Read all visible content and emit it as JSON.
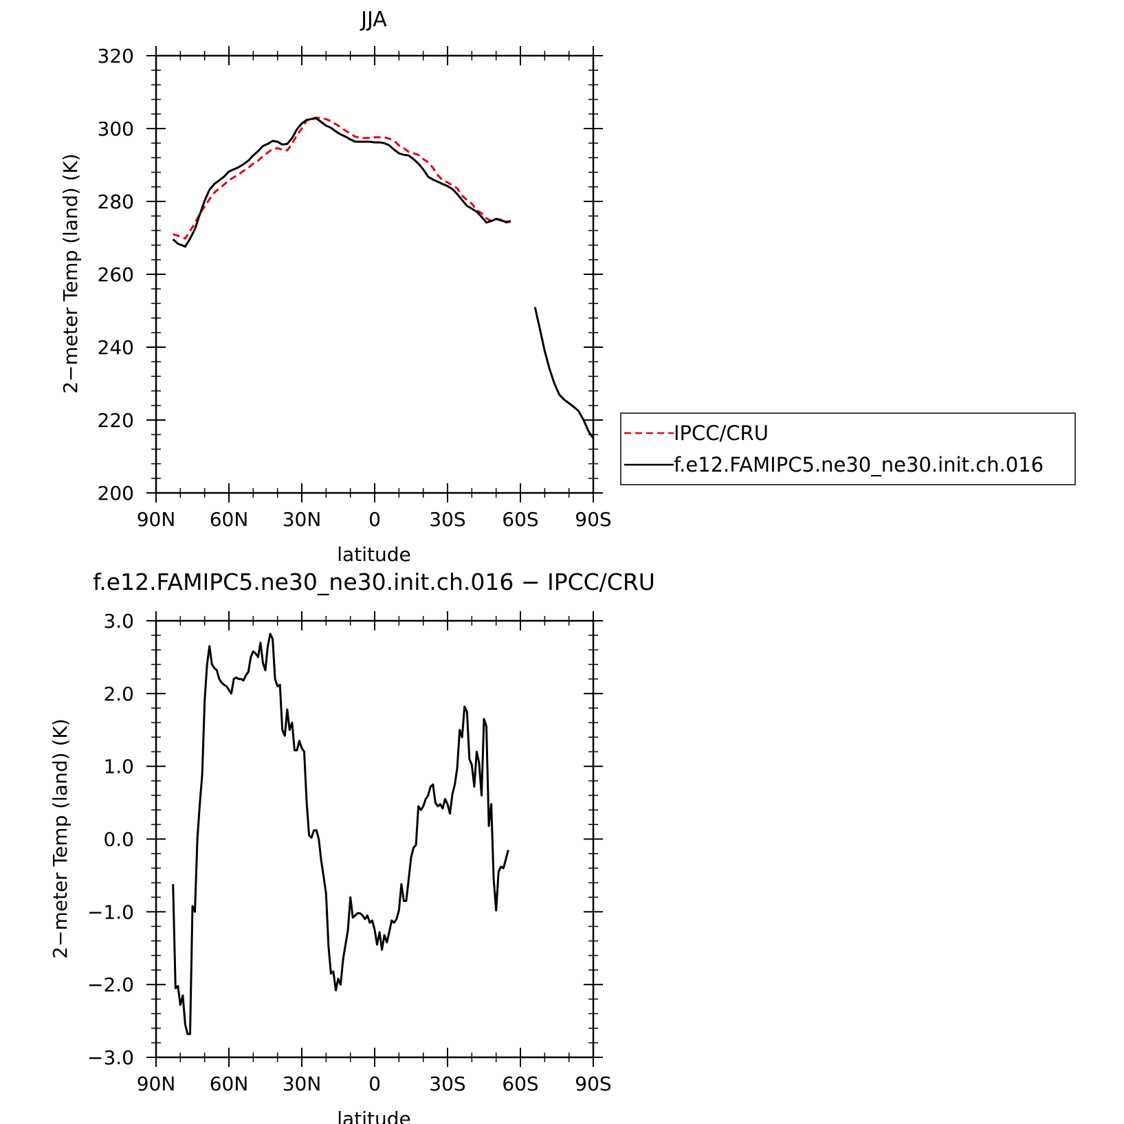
{
  "chart_data": [
    {
      "type": "line",
      "title": "JJA",
      "xlabel": "latitude",
      "ylabel": "2−meter Temp (land) (K)",
      "xlim": [
        90,
        -90
      ],
      "ylim": [
        200,
        320
      ],
      "xticks": [
        90,
        60,
        30,
        0,
        -30,
        -60,
        -90
      ],
      "xtick_labels": [
        "90N",
        "60N",
        "30N",
        "0",
        "30S",
        "60S",
        "90S"
      ],
      "yticks": [
        200,
        220,
        240,
        260,
        280,
        300,
        320
      ],
      "ytick_labels": [
        "200",
        "220",
        "240",
        "260",
        "280",
        "300",
        "320"
      ],
      "legend": {
        "placement": "right"
      },
      "series": [
        {
          "name": "IPCC/CRU",
          "color": "#e8000b",
          "dash": "dashed",
          "x": [
            83,
            81,
            78,
            76,
            74,
            72,
            70,
            68,
            66,
            64,
            62,
            60,
            58,
            56,
            54,
            52,
            50,
            48,
            46,
            44,
            42,
            40,
            38,
            36,
            34,
            32,
            30,
            28,
            26,
            24,
            22,
            20,
            18,
            16,
            14,
            12,
            10,
            8,
            6,
            4,
            2,
            0,
            -2,
            -4,
            -6,
            -8,
            -10,
            -12,
            -14,
            -16,
            -18,
            -20,
            -22,
            -24,
            -26,
            -28,
            -30,
            -32,
            -34,
            -36,
            -38,
            -40,
            -42,
            -44,
            -46,
            -48,
            -50,
            -52,
            -54,
            -56
          ],
          "values": [
            271,
            270.6,
            269.8,
            271.9,
            274,
            276.6,
            278.6,
            280.6,
            282.4,
            283.6,
            284.6,
            285.8,
            286.6,
            287.4,
            288.4,
            289.2,
            290.4,
            291.2,
            292.4,
            293.4,
            294.4,
            294.6,
            294.2,
            294,
            295.8,
            298.2,
            300,
            302.2,
            302.8,
            303,
            302.8,
            302.6,
            302,
            301.2,
            300.4,
            299.4,
            298.6,
            297.8,
            297.4,
            297.4,
            297.4,
            297.6,
            297.6,
            297.6,
            297.2,
            296.6,
            295.4,
            294.6,
            293.6,
            293.2,
            292.8,
            291.6,
            290.8,
            289.2,
            287.2,
            285.8,
            285.2,
            284.4,
            283.6,
            281.6,
            280.4,
            279.4,
            277.6,
            276.8,
            275.4,
            274.6,
            275.2,
            275,
            274.2,
            274.4
          ]
        },
        {
          "name": "f.e12.FAMIPC5.ne30_ne30.init.ch.016",
          "color": "#000000",
          "dash": "solid",
          "x": [
            83,
            81,
            78,
            76,
            74,
            72,
            70,
            68,
            66,
            64,
            62,
            60,
            58,
            56,
            54,
            52,
            50,
            48,
            46,
            44,
            42,
            40,
            38,
            36,
            34,
            32,
            30,
            28,
            26,
            24,
            22,
            20,
            18,
            16,
            14,
            12,
            10,
            8,
            6,
            4,
            2,
            0,
            -2,
            -4,
            -6,
            -8,
            -10,
            -12,
            -14,
            -16,
            -18,
            -20,
            -22,
            -24,
            -26,
            -28,
            -30,
            -32,
            -34,
            -36,
            -38,
            -40,
            -42,
            -44,
            -46,
            -48,
            -50,
            -52,
            -54,
            -56,
            null,
            -66,
            -68,
            -70,
            -72,
            -74,
            -76,
            -78,
            -80,
            -82,
            -84,
            -86,
            -88,
            -90
          ],
          "values": [
            269.6,
            268.4,
            267.6,
            269.8,
            272.4,
            276.4,
            280.2,
            283.2,
            284.8,
            285.8,
            286.8,
            288.2,
            288.8,
            289.4,
            290.2,
            291.2,
            292.6,
            293.8,
            295.2,
            295.8,
            296.6,
            296.4,
            295.6,
            295.8,
            297.4,
            299.8,
            301.4,
            302.4,
            302.6,
            302.8,
            301.8,
            300.8,
            300.2,
            299.2,
            298.4,
            297.8,
            297,
            296.4,
            296.4,
            296.4,
            296.4,
            296.2,
            296.2,
            296,
            295.4,
            294.2,
            293.2,
            292.8,
            292.6,
            291.6,
            290.4,
            288.8,
            286.8,
            286,
            285.4,
            284.8,
            284.2,
            283.4,
            282,
            280.4,
            278.8,
            278,
            277.2,
            275.8,
            274.2,
            274.6,
            275.2,
            274.8,
            274.4,
            274.6,
            null,
            251,
            245,
            239,
            234,
            230,
            227,
            225.6,
            224.6,
            223.6,
            222.4,
            220,
            217,
            215
          ]
        }
      ]
    },
    {
      "type": "line",
      "title": "f.e12.FAMIPC5.ne30_ne30.init.ch.016 − IPCC/CRU",
      "xlabel": "latitude",
      "ylabel": "2−meter Temp (land) (K)",
      "xlim": [
        90,
        -90
      ],
      "ylim": [
        -3,
        3
      ],
      "xticks": [
        90,
        60,
        30,
        0,
        -30,
        -60,
        -90
      ],
      "xtick_labels": [
        "90N",
        "60N",
        "30N",
        "0",
        "30S",
        "60S",
        "90S"
      ],
      "yticks": [
        -3,
        -2,
        -1,
        0,
        1,
        2,
        3
      ],
      "ytick_labels": [
        "−3.0",
        "−2.0",
        "−1.0",
        "0.0",
        "1.0",
        "2.0",
        "3.0"
      ],
      "series": [
        {
          "color": "#000000",
          "dash": "solid",
          "x": [
            83,
            82,
            81,
            80,
            79,
            78,
            77,
            76,
            75,
            74,
            73,
            72,
            71,
            70,
            69,
            68,
            67,
            66,
            65,
            64,
            63,
            62,
            61,
            60,
            59,
            58,
            57,
            56,
            55,
            54,
            53,
            52,
            51,
            50,
            49,
            48,
            47,
            46,
            45,
            44,
            43,
            42,
            41,
            40,
            39,
            38,
            37,
            36,
            35,
            34,
            33,
            32,
            31,
            30,
            29,
            28,
            27,
            26,
            25,
            24,
            23,
            22,
            21,
            20,
            19,
            18,
            17,
            16,
            15,
            14,
            13,
            12,
            11,
            10,
            9,
            8,
            7,
            6,
            5,
            4,
            3,
            2,
            1,
            0,
            -1,
            -2,
            -3,
            -4,
            -5,
            -6,
            -7,
            -8,
            -9,
            -10,
            -11,
            -12,
            -13,
            -14,
            -15,
            -16,
            -17,
            -18,
            -19,
            -20,
            -21,
            -22,
            -23,
            -24,
            -25,
            -26,
            -27,
            -28,
            -29,
            -30,
            -31,
            -32,
            -33,
            -34,
            -35,
            -36,
            -37,
            -38,
            -39,
            -40,
            -41,
            -42,
            -43,
            -44,
            -45,
            -46,
            -47,
            -48,
            -49,
            -50,
            -51,
            -52,
            -53,
            -54,
            -55
          ],
          "values": [
            -0.62,
            -2.05,
            -2.02,
            -2.28,
            -2.15,
            -2.55,
            -2.68,
            -2.68,
            -0.92,
            -1.0,
            0.0,
            0.48,
            0.88,
            1.9,
            2.4,
            2.65,
            2.4,
            2.35,
            2.32,
            2.2,
            2.15,
            2.12,
            2.1,
            2.05,
            2.0,
            2.2,
            2.22,
            2.2,
            2.2,
            2.18,
            2.25,
            2.3,
            2.5,
            2.58,
            2.55,
            2.5,
            2.7,
            2.42,
            2.32,
            2.65,
            2.82,
            2.75,
            2.2,
            2.1,
            2.12,
            1.5,
            1.42,
            1.78,
            1.5,
            1.6,
            1.22,
            1.22,
            1.35,
            1.25,
            1.2,
            0.5,
            0.05,
            0.02,
            0.12,
            0.12,
            0.0,
            -0.3,
            -0.52,
            -0.75,
            -1.48,
            -1.85,
            -1.82,
            -2.08,
            -1.92,
            -2.0,
            -1.65,
            -1.45,
            -1.25,
            -0.8,
            -1.08,
            -1.05,
            -1.02,
            -1.02,
            -1.05,
            -1.1,
            -1.05,
            -1.15,
            -1.12,
            -1.25,
            -1.45,
            -1.28,
            -1.52,
            -1.32,
            -1.42,
            -1.28,
            -1.12,
            -1.15,
            -1.1,
            -0.98,
            -0.62,
            -0.85,
            -0.85,
            -0.55,
            -0.25,
            -0.12,
            -0.08,
            0.45,
            0.4,
            0.45,
            0.55,
            0.6,
            0.72,
            0.75,
            0.5,
            0.45,
            0.48,
            0.42,
            0.55,
            0.48,
            0.35,
            0.62,
            0.75,
            0.98,
            1.5,
            1.4,
            1.82,
            1.75,
            1.1,
            1.02,
            0.72,
            1.2,
            1.05,
            0.6,
            1.65,
            1.55,
            0.18,
            0.48,
            -0.55,
            -0.98,
            -0.45,
            -0.38,
            -0.4,
            -0.28,
            -0.15
          ]
        }
      ]
    }
  ]
}
